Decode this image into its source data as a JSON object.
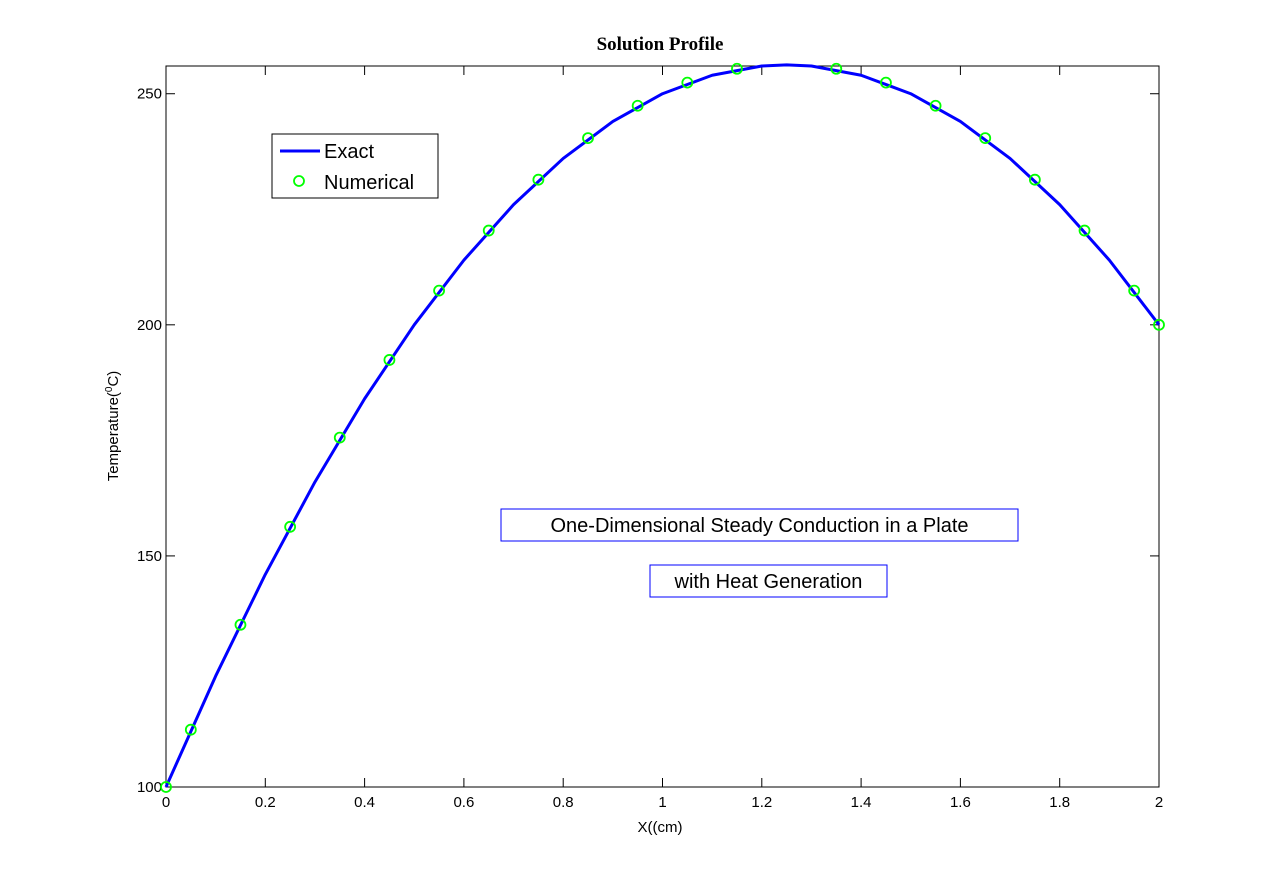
{
  "chart_data": {
    "type": "line",
    "title": "Solution Profile",
    "xlabel": "X((cm)",
    "ylabel_main": "Temperature(",
    "ylabel_sup": "0",
    "ylabel_end": "C)",
    "xlim": [
      0,
      2
    ],
    "ylim": [
      100,
      256
    ],
    "xticks": [
      0,
      0.2,
      0.4,
      0.6,
      0.8,
      1,
      1.2,
      1.4,
      1.6,
      1.8,
      2
    ],
    "xtick_labels": [
      "0",
      "0.2",
      "0.4",
      "0.6",
      "0.8",
      "1",
      "1.2",
      "1.4",
      "1.6",
      "1.8",
      "2"
    ],
    "yticks": [
      100,
      150,
      200,
      250
    ],
    "ytick_labels": [
      "100",
      "150",
      "200",
      "250"
    ],
    "grid": false,
    "legend_position": "top-left",
    "series": [
      {
        "name": "Exact",
        "style": "line",
        "color": "#0000ff",
        "x": [
          0,
          0.1,
          0.2,
          0.3,
          0.4,
          0.5,
          0.6,
          0.7,
          0.8,
          0.9,
          1.0,
          1.1,
          1.2,
          1.25,
          1.3,
          1.4,
          1.5,
          1.6,
          1.7,
          1.8,
          1.9,
          2.0
        ],
        "y": [
          100,
          124,
          146,
          166,
          184,
          200,
          214,
          226,
          236,
          244,
          250,
          254,
          256,
          256.25,
          256,
          254,
          250,
          244,
          236,
          226,
          214,
          200
        ]
      },
      {
        "name": "Numerical",
        "style": "circle-markers",
        "color": "#00ff00",
        "x": [
          0,
          0.05,
          0.15,
          0.25,
          0.35,
          0.45,
          0.55,
          0.65,
          0.75,
          0.85,
          0.95,
          1.05,
          1.15,
          1.35,
          1.45,
          1.55,
          1.65,
          1.75,
          1.85,
          1.95,
          2.0
        ],
        "y": [
          100,
          112.4,
          135.1,
          156.3,
          175.6,
          192.4,
          207.4,
          220.4,
          231.4,
          240.4,
          247.4,
          252.4,
          255.4,
          255.4,
          252.4,
          247.4,
          240.4,
          231.4,
          220.4,
          207.4,
          200
        ]
      }
    ],
    "annotations": [
      "One-Dimensional Steady Conduction in a Plate",
      "with Heat Generation"
    ]
  },
  "colors": {
    "exact_line": "#0000ff",
    "numerical_marker": "#00ff00",
    "annotation_border": "#0000ff"
  }
}
